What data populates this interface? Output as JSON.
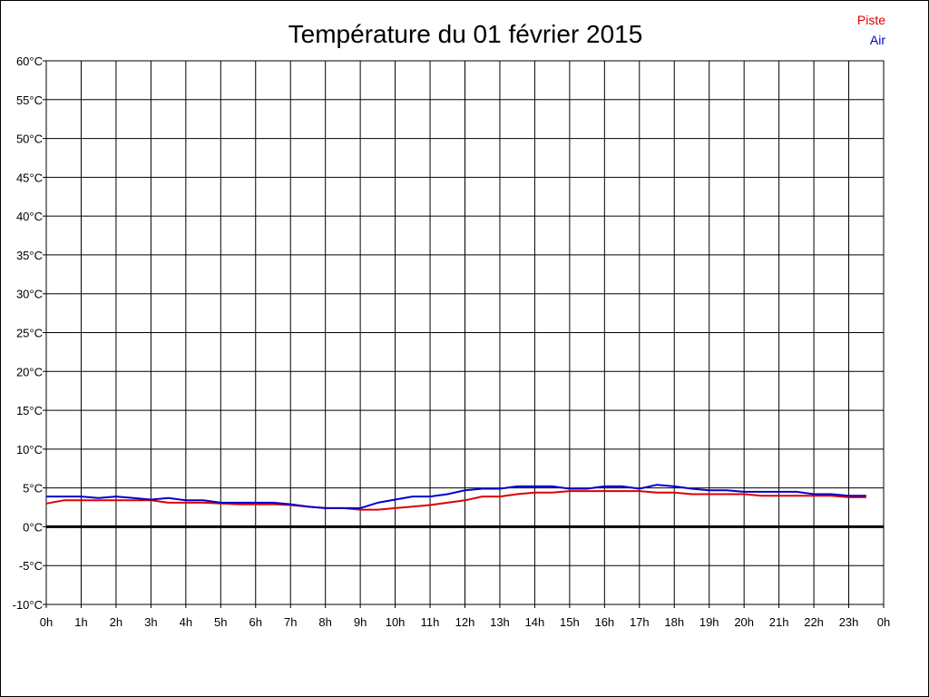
{
  "chart_data": {
    "type": "line",
    "title": "Température du 01 février 2015",
    "xlabel": "",
    "ylabel": "",
    "x_ticks": [
      "0h",
      "1h",
      "2h",
      "3h",
      "4h",
      "5h",
      "6h",
      "7h",
      "8h",
      "9h",
      "10h",
      "11h",
      "12h",
      "13h",
      "14h",
      "15h",
      "16h",
      "17h",
      "18h",
      "19h",
      "20h",
      "21h",
      "22h",
      "23h",
      "0h"
    ],
    "y_ticks": [
      "-10°C",
      "-5°C",
      "0°C",
      "5°C",
      "10°C",
      "15°C",
      "20°C",
      "25°C",
      "30°C",
      "35°C",
      "40°C",
      "45°C",
      "50°C",
      "55°C",
      "60°C"
    ],
    "xlim": [
      0,
      24
    ],
    "ylim": [
      -10,
      60
    ],
    "grid": true,
    "legend_position": "top-right",
    "zero_line": true,
    "series": [
      {
        "name": "Piste",
        "color": "#dd0000",
        "x": [
          0,
          0.5,
          1,
          1.5,
          2,
          2.5,
          3,
          3.5,
          4,
          4.5,
          5,
          5.5,
          6,
          6.5,
          7,
          7.5,
          8,
          8.5,
          9,
          9.5,
          10,
          10.5,
          11,
          11.5,
          12,
          12.5,
          13,
          13.5,
          14,
          14.5,
          15,
          15.5,
          16,
          16.5,
          17,
          17.5,
          18,
          18.5,
          19,
          19.5,
          20,
          20.5,
          21,
          21.5,
          22,
          22.5,
          23,
          23.5
        ],
        "values": [
          3.0,
          3.4,
          3.4,
          3.4,
          3.4,
          3.4,
          3.4,
          3.1,
          3.1,
          3.1,
          3.0,
          2.9,
          2.9,
          2.9,
          2.8,
          2.6,
          2.4,
          2.4,
          2.2,
          2.2,
          2.4,
          2.6,
          2.8,
          3.1,
          3.4,
          3.9,
          3.9,
          4.2,
          4.4,
          4.4,
          4.6,
          4.6,
          4.6,
          4.6,
          4.6,
          4.4,
          4.4,
          4.2,
          4.2,
          4.2,
          4.2,
          4.0,
          4.0,
          4.0,
          4.0,
          4.0,
          3.8,
          3.8
        ]
      },
      {
        "name": "Air",
        "color": "#0000cc",
        "x": [
          0,
          0.5,
          1,
          1.5,
          2,
          2.5,
          3,
          3.5,
          4,
          4.5,
          5,
          5.5,
          6,
          6.5,
          7,
          7.5,
          8,
          8.5,
          9,
          9.5,
          10,
          10.5,
          11,
          11.5,
          12,
          12.5,
          13,
          13.5,
          14,
          14.5,
          15,
          15.5,
          16,
          16.5,
          17,
          17.5,
          18,
          18.5,
          19,
          19.5,
          20,
          20.5,
          21,
          21.5,
          22,
          22.5,
          23,
          23.5
        ],
        "values": [
          3.9,
          3.9,
          3.9,
          3.7,
          3.9,
          3.7,
          3.5,
          3.7,
          3.4,
          3.4,
          3.1,
          3.1,
          3.1,
          3.1,
          2.9,
          2.6,
          2.4,
          2.4,
          2.4,
          3.1,
          3.5,
          3.9,
          3.9,
          4.2,
          4.7,
          4.9,
          4.9,
          5.2,
          5.2,
          5.2,
          4.9,
          4.9,
          5.2,
          5.2,
          4.9,
          5.4,
          5.2,
          4.9,
          4.7,
          4.7,
          4.5,
          4.5,
          4.5,
          4.5,
          4.2,
          4.2,
          4.0,
          4.0
        ]
      }
    ]
  }
}
